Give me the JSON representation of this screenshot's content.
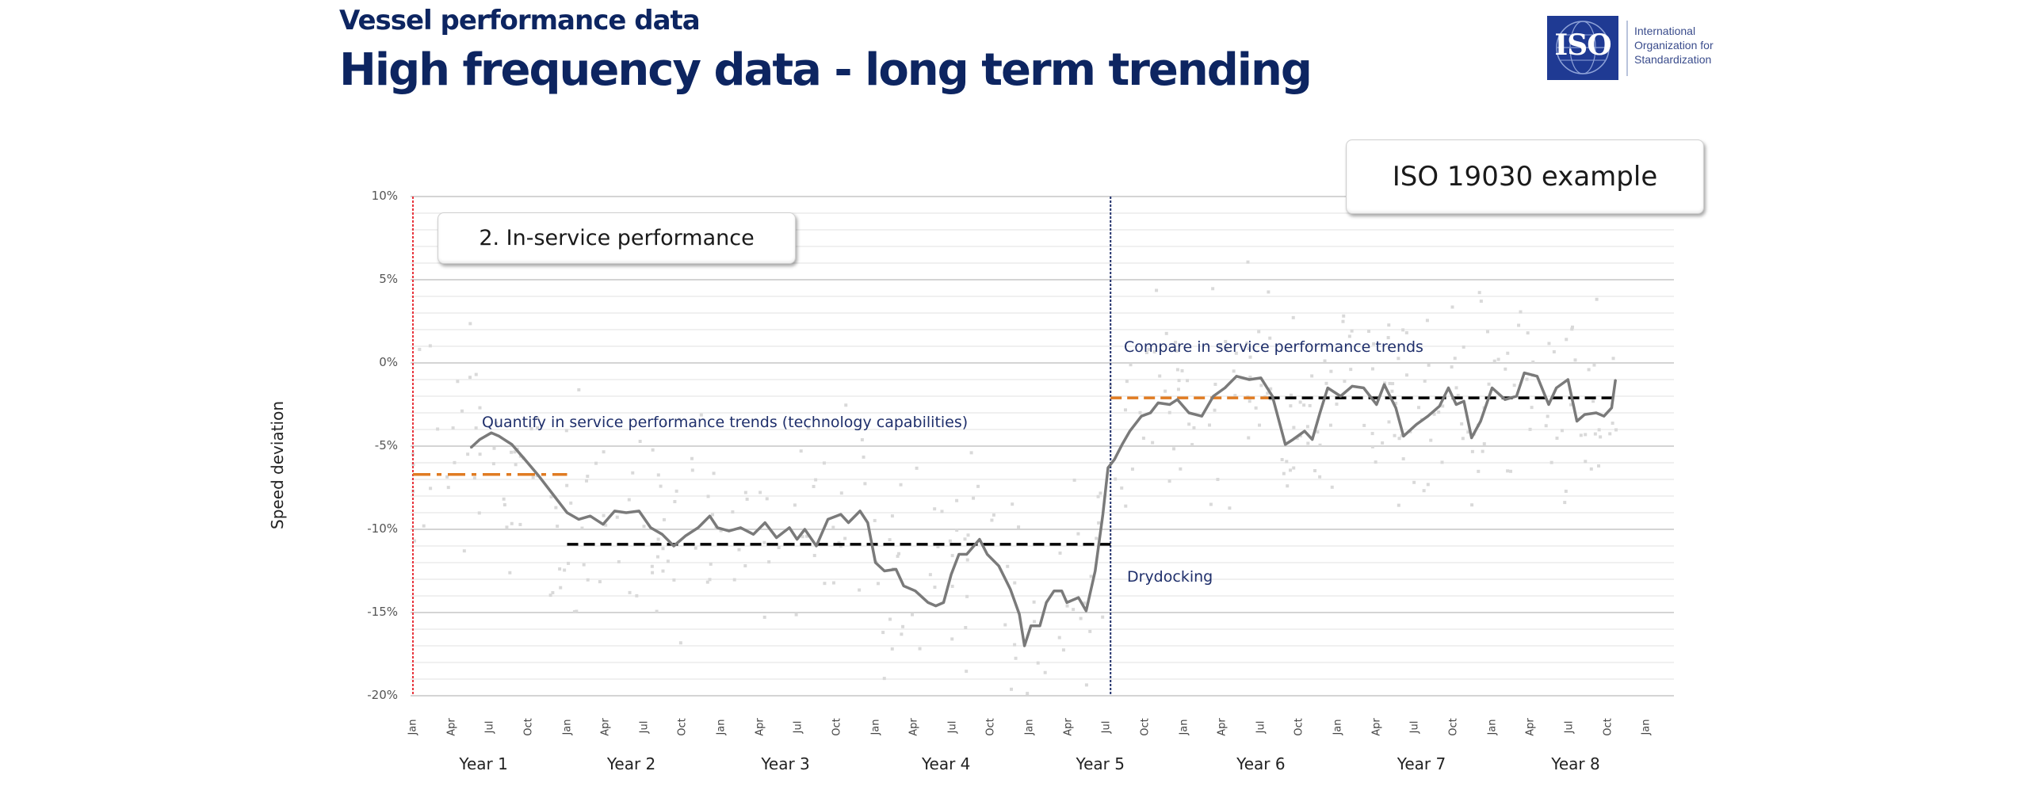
{
  "header": {
    "subtitle": "Vessel performance data",
    "title": "High frequency data - long term trending"
  },
  "logo": {
    "mark": "ISO",
    "line1": "International",
    "line2": "Organization for",
    "line3": "Standardization",
    "color": "#1f3a93"
  },
  "callouts": {
    "iso_example": "ISO 19030 example",
    "in_service": "2. In-service performance"
  },
  "chart_data": {
    "type": "line",
    "title": "",
    "xlabel": "",
    "ylabel": "Speed deviation",
    "ylim": [
      -20,
      10
    ],
    "y_ticks": [
      10,
      5,
      0,
      -5,
      -10,
      -15,
      -20
    ],
    "y_tick_labels": [
      "10%",
      "5%",
      "0%",
      "-5%",
      "-10%",
      "-15%",
      "-20%"
    ],
    "y_minor_step": 1,
    "grid": true,
    "x_unit": "months since Year 1 Jan",
    "xlim": [
      0,
      99
    ],
    "x_ticks_months": [
      0,
      3,
      6,
      9,
      12,
      15,
      18,
      21,
      24,
      27,
      30,
      33,
      36,
      39,
      42,
      45,
      48,
      51,
      54,
      57,
      60,
      63,
      66,
      69,
      72,
      75,
      78,
      81,
      84,
      87,
      90,
      93,
      96
    ],
    "x_tick_labels": [
      "Jan",
      "Apr",
      "Jul",
      "Oct",
      "Jan",
      "Apr",
      "Jul",
      "Oct",
      "Jan",
      "Apr",
      "Jul",
      "Oct",
      "Jan",
      "Apr",
      "Jul",
      "Oct",
      "Jan",
      "Apr",
      "Jul",
      "Oct",
      "Jan",
      "Apr",
      "Jul",
      "Oct",
      "Jan",
      "Apr",
      "Jul",
      "Oct",
      "Jan",
      "Apr",
      "Jul",
      "Oct",
      "Jan"
    ],
    "year_labels": [
      {
        "label": "Year 1",
        "month": 5.5
      },
      {
        "label": "Year 2",
        "month": 17
      },
      {
        "label": "Year 3",
        "month": 29
      },
      {
        "label": "Year 4",
        "month": 41.5
      },
      {
        "label": "Year 5",
        "month": 53.5
      },
      {
        "label": "Year 6",
        "month": 66
      },
      {
        "label": "Year 7",
        "month": 78.5
      },
      {
        "label": "Year 8",
        "month": 90.5
      }
    ],
    "series": [
      {
        "name": "Speed deviation trend",
        "color": "#7a7a7a",
        "x": [
          4.5,
          5.2,
          6.1,
          6.7,
          7.7,
          8.6,
          9.8,
          11.0,
          12.0,
          12.9,
          13.8,
          14.8,
          15.7,
          16.6,
          17.6,
          18.5,
          19.4,
          20.3,
          21.2,
          22.2,
          23.1,
          23.7,
          24.6,
          25.5,
          26.5,
          27.4,
          28.3,
          29.3,
          29.9,
          30.5,
          31.4,
          32.3,
          33.3,
          33.9,
          34.8,
          35.4,
          36.0,
          36.7,
          37.6,
          38.2,
          39.1,
          40.1,
          40.7,
          41.3,
          41.9,
          42.5,
          43.1,
          44.1,
          44.7,
          45.6,
          46.5,
          47.2,
          47.6,
          48.1,
          48.8,
          49.3,
          49.9,
          50.5,
          50.9,
          51.8,
          52.4,
          53.1,
          53.7,
          54.1,
          54.6,
          55.2,
          55.8,
          56.7,
          57.4,
          58.0,
          58.9,
          59.5,
          60.4,
          61.4,
          62.3,
          63.2,
          64.1,
          65.1,
          66.0,
          66.9,
          67.9,
          68.5,
          69.4,
          70.0,
          70.6,
          71.2,
          72.2,
          73.1,
          74.0,
          75.0,
          75.6,
          76.5,
          77.1,
          78.1,
          79.0,
          79.9,
          80.6,
          81.2,
          81.8,
          82.4,
          83.1,
          84.0,
          85.0,
          85.9,
          86.5,
          87.5,
          88.4,
          89.0,
          89.9,
          90.6,
          91.2,
          92.1,
          92.7,
          93.3,
          93.6
        ],
        "y": [
          -5.1,
          -4.6,
          -4.2,
          -4.4,
          -4.9,
          -5.7,
          -6.8,
          -8.0,
          -9.0,
          -9.4,
          -9.2,
          -9.7,
          -8.9,
          -9.0,
          -8.9,
          -9.9,
          -10.3,
          -11.0,
          -10.4,
          -9.9,
          -9.2,
          -9.9,
          -10.1,
          -9.9,
          -10.3,
          -9.6,
          -10.5,
          -9.9,
          -10.6,
          -10.0,
          -11.0,
          -9.4,
          -9.1,
          -9.6,
          -8.9,
          -9.6,
          -12.0,
          -12.5,
          -12.4,
          -13.4,
          -13.7,
          -14.4,
          -14.6,
          -14.4,
          -12.7,
          -11.5,
          -11.5,
          -10.6,
          -11.5,
          -12.2,
          -13.6,
          -15.1,
          -17.0,
          -15.8,
          -15.8,
          -14.4,
          -13.7,
          -13.7,
          -14.4,
          -14.1,
          -14.9,
          -12.5,
          -9.1,
          -6.3,
          -5.8,
          -4.9,
          -4.1,
          -3.2,
          -3.0,
          -2.4,
          -2.5,
          -2.2,
          -3.0,
          -3.2,
          -2.0,
          -1.5,
          -0.8,
          -1.0,
          -0.9,
          -2.0,
          -4.9,
          -4.6,
          -4.1,
          -4.6,
          -3.0,
          -1.5,
          -2.0,
          -1.4,
          -1.5,
          -2.5,
          -1.3,
          -2.7,
          -4.4,
          -3.7,
          -3.2,
          -2.6,
          -1.5,
          -2.5,
          -2.3,
          -4.5,
          -3.5,
          -1.5,
          -2.2,
          -2.0,
          -0.6,
          -0.8,
          -2.5,
          -1.5,
          -1.0,
          -3.5,
          -3.1,
          -3.0,
          -3.2,
          -2.7,
          -1.0
        ]
      }
    ],
    "reference_lines": [
      {
        "name": "baseline-year1",
        "color": "#e07b22",
        "style": "dash-dot",
        "x": [
          0,
          12
        ],
        "y": -6.7
      },
      {
        "name": "trend-avg-pre-drydock",
        "color": "#000000",
        "style": "dashed",
        "x": [
          12,
          54.3
        ],
        "y": -10.9
      },
      {
        "name": "baseline-post-drydock",
        "color": "#e07b22",
        "style": "dashed",
        "x": [
          54.3,
          66.6
        ],
        "y": -2.1
      },
      {
        "name": "trend-avg-post-drydock",
        "color": "#000000",
        "style": "dashed",
        "x": [
          66.6,
          93.6
        ],
        "y": -2.1
      }
    ],
    "vertical_markers": [
      {
        "name": "start-marker",
        "month": 0,
        "color": "#e8343c"
      },
      {
        "name": "drydocking-marker",
        "month": 54.3,
        "color": "#1f2f6b"
      }
    ],
    "annotations": {
      "quantify": "Quantify in service performance trends (technology capabilities)",
      "compare": "Compare in service performance trends",
      "drydocking": "Drydocking"
    },
    "scatter_color": "#d9d9d9"
  }
}
